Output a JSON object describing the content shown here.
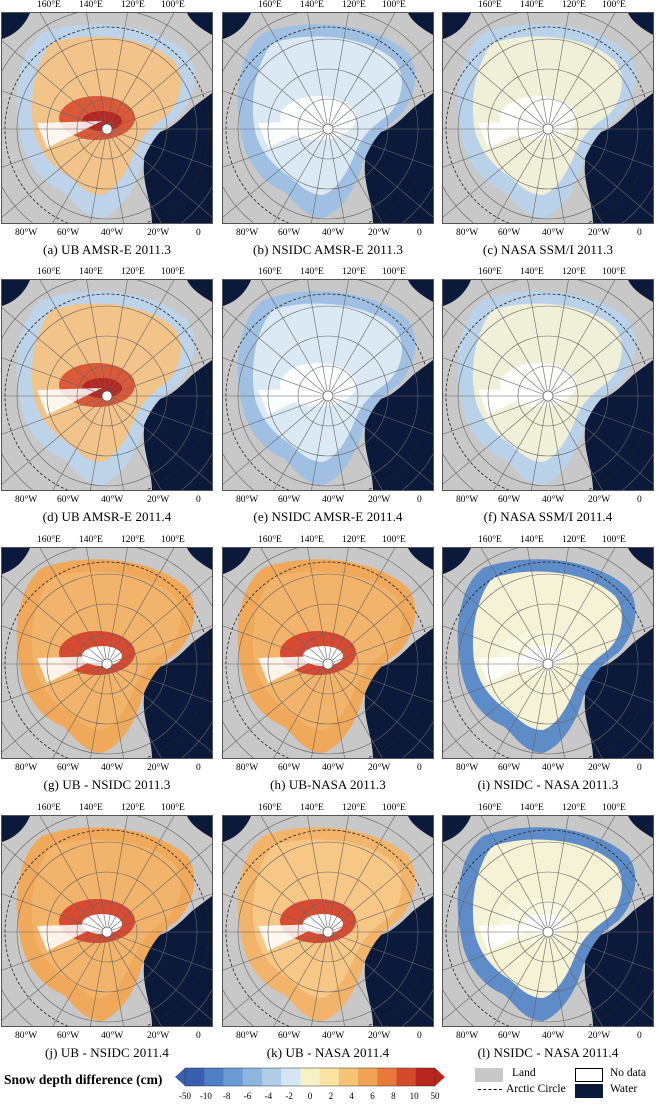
{
  "top_lon_labels": [
    "160°E",
    "140°E",
    "120°E",
    "100°E"
  ],
  "bottom_lon_labels": [
    "80°W",
    "60°W",
    "40°W",
    "20°W",
    "0"
  ],
  "panels": [
    {
      "caption": "(a) UB AMSR-E 2011.3",
      "scheme": "ub_raw"
    },
    {
      "caption": "(b) NSIDC AMSR-E 2011.3",
      "scheme": "nsidc_raw"
    },
    {
      "caption": "(c) NASA SSM/I 2011.3",
      "scheme": "nasa_raw"
    },
    {
      "caption": "(d) UB AMSR-E 2011.4",
      "scheme": "ub_raw"
    },
    {
      "caption": "(e) NSIDC AMSR-E 2011.4",
      "scheme": "nsidc_raw"
    },
    {
      "caption": "(f) NASA SSM/I 2011.4",
      "scheme": "nasa_raw"
    },
    {
      "caption": "(g) UB - NSIDC 2011.3",
      "scheme": "ub_diff"
    },
    {
      "caption": "(h) UB-NASA 2011.3",
      "scheme": "ub_diff"
    },
    {
      "caption": "(i) NSIDC - NASA 2011.3",
      "scheme": "nsidc_nasa"
    },
    {
      "caption": "(j) UB - NSIDC 2011.4",
      "scheme": "ub_diff"
    },
    {
      "caption": "(k) UB - NASA 2011.4",
      "scheme": "ub_diff2"
    },
    {
      "caption": "(l) NSIDC - NASA 2011.4",
      "scheme": "nsidc_nasa"
    }
  ],
  "legend": {
    "title": "Snow depth difference (cm)",
    "ticks": [
      "-50",
      "-10",
      "-8",
      "-6",
      "-4",
      "-2",
      "0",
      "2",
      "4",
      "6",
      "8",
      "10",
      "50"
    ],
    "colors": [
      "#3a5fb0",
      "#4f7fc4",
      "#6b9bd2",
      "#8db6de",
      "#b0cde8",
      "#d5e6f2",
      "#f5f2c8",
      "#fbe3a0",
      "#f7c475",
      "#f1a254",
      "#e7793c",
      "#d44a2c",
      "#b8261f"
    ],
    "land_label": "Land",
    "no_data_label": "No data",
    "arctic_circle_label": "Arctic Circle",
    "water_label": "Water",
    "land_color": "#c8c8c8",
    "water_color": "#0b1a3a",
    "no_data_color": "#ffffff"
  }
}
